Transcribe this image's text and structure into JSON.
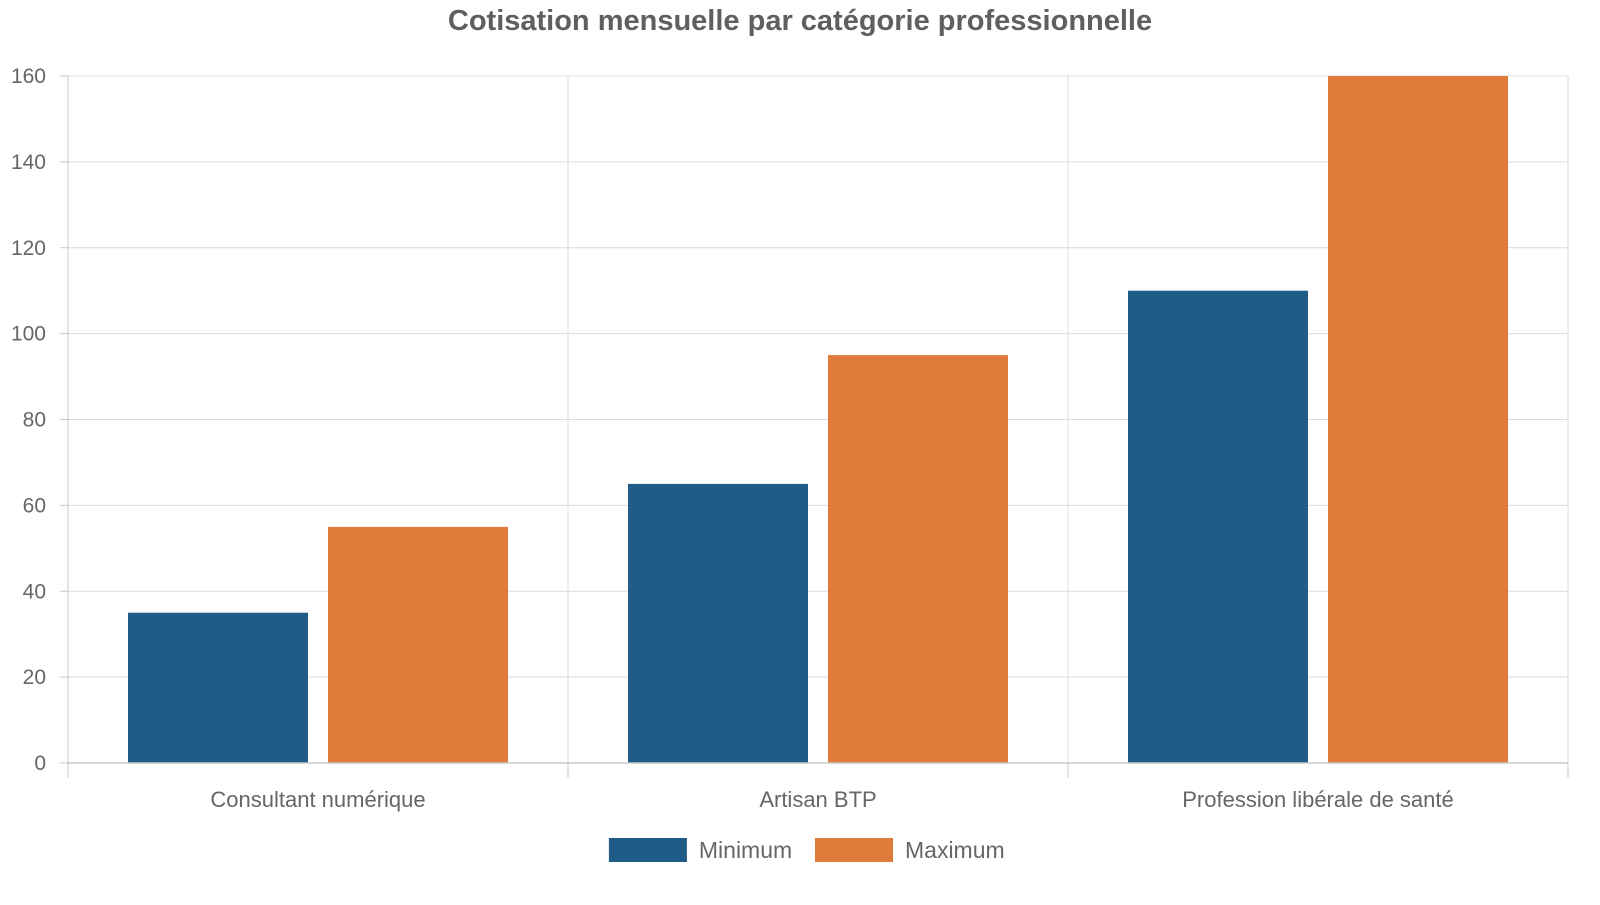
{
  "chart_data": {
    "type": "bar",
    "title": "Cotisation mensuelle par catégorie professionnelle",
    "categories": [
      "Consultant numérique",
      "Artisan BTP",
      "Profession libérale de santé"
    ],
    "series": [
      {
        "name": "Minimum",
        "values": [
          35,
          65,
          110
        ],
        "color": "#1f5c87"
      },
      {
        "name": "Maximum",
        "values": [
          55,
          95,
          160
        ],
        "color": "#e07b3c"
      }
    ],
    "ylim": [
      0,
      160
    ],
    "yticks": [
      0,
      20,
      40,
      60,
      80,
      100,
      120,
      140,
      160
    ],
    "grid": true,
    "legend_position": "bottom-center"
  }
}
